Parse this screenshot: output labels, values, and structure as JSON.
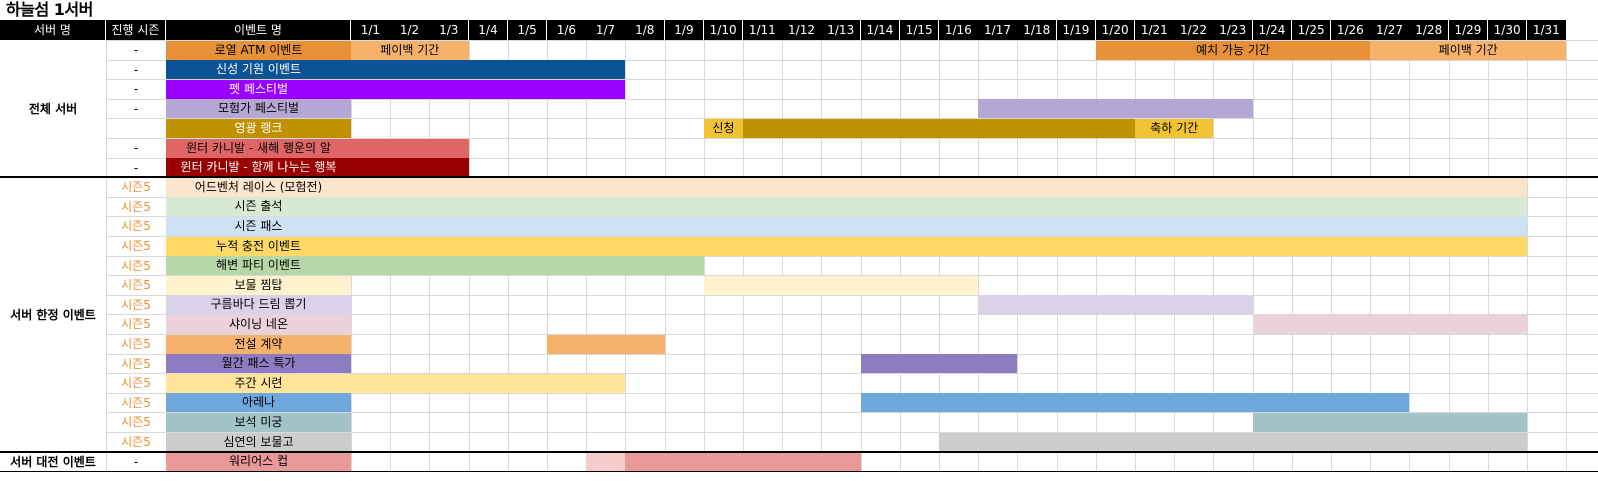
{
  "title": "하늘섬 1서버",
  "headers": {
    "server": "서버 명",
    "season": "진행 시즌",
    "event": "이벤트 명",
    "days": [
      "1/1",
      "1/2",
      "1/3",
      "1/4",
      "1/5",
      "1/6",
      "1/7",
      "1/8",
      "1/9",
      "1/10",
      "1/11",
      "1/12",
      "1/13",
      "1/14",
      "1/15",
      "1/16",
      "1/17",
      "1/18",
      "1/19",
      "1/20",
      "1/21",
      "1/22",
      "1/23",
      "1/24",
      "1/25",
      "1/26",
      "1/27",
      "1/28",
      "1/29",
      "1/30",
      "1/31"
    ]
  },
  "groups": [
    {
      "label": "전체 서버",
      "first_row": 0,
      "last_row": 6
    },
    {
      "label": "서버 한정 이벤트",
      "first_row": 7,
      "last_row": 20
    },
    {
      "label": "서버 대전 이벤트",
      "first_row": 21,
      "last_row": 21
    }
  ],
  "rows": [
    {
      "season": "-",
      "name": "로열 ATM 이벤트",
      "color": "#e69138",
      "text_color": "#000000",
      "bars": [
        {
          "start": 1,
          "end": 3,
          "color": "#f6b26b",
          "label": "페이백 기간"
        },
        {
          "start": 20,
          "end": 26,
          "color": "#e69138",
          "label": "예치 가능 기간"
        },
        {
          "start": 27,
          "end": 31,
          "color": "#f6b26b",
          "label": "페이백 기간"
        }
      ]
    },
    {
      "season": "-",
      "name": "신성 기원 이벤트",
      "color": "#0b5394",
      "text_color": "#ffffff",
      "bars": [
        {
          "start": 1,
          "end": 7,
          "color": "#0b5394",
          "label": ""
        }
      ]
    },
    {
      "season": "-",
      "name": "펫 페스티벌",
      "color": "#9900ff",
      "text_color": "#ffffff",
      "bars": [
        {
          "start": 1,
          "end": 7,
          "color": "#9900ff",
          "label": ""
        }
      ]
    },
    {
      "season": "-",
      "name": "모험가 페스티벌",
      "color": "#b4a7d6",
      "text_color": "#000000",
      "bars": [
        {
          "start": 17,
          "end": 23,
          "color": "#b4a7d6",
          "label": ""
        }
      ]
    },
    {
      "season": "",
      "name": "영광 랭크",
      "color": "#bf9000",
      "text_color": "#ffffff",
      "bars": [
        {
          "start": 10,
          "end": 10,
          "color": "#f1c232",
          "label": "신청"
        },
        {
          "start": 11,
          "end": 20,
          "color": "#bf9000",
          "label": ""
        },
        {
          "start": 21,
          "end": 22,
          "color": "#f1c232",
          "label": "축하 기간"
        }
      ]
    },
    {
      "season": "-",
      "name": "윈터 카니발 - 새해 행운의 알",
      "color": "#e06666",
      "text_color": "#000000",
      "bars": [
        {
          "start": 1,
          "end": 3,
          "color": "#e06666",
          "label": ""
        }
      ]
    },
    {
      "season": "-",
      "name": "윈터 카니발 - 함께 나누는 행복",
      "color": "#990000",
      "text_color": "#ffffff",
      "bars": [
        {
          "start": 1,
          "end": 3,
          "color": "#990000",
          "label": ""
        }
      ]
    },
    {
      "season": "시즌5",
      "name": "어드벤처 레이스 (모험전)",
      "color": "#fce5cd",
      "text_color": "#000000",
      "bars": [
        {
          "start": 1,
          "end": 30,
          "color": "#fce5cd",
          "label": ""
        }
      ]
    },
    {
      "season": "시즌5",
      "name": "시즌 출석",
      "color": "#d9ead3",
      "text_color": "#000000",
      "bars": [
        {
          "start": 1,
          "end": 30,
          "color": "#d9ead3",
          "label": ""
        }
      ]
    },
    {
      "season": "시즌5",
      "name": "시즌 패스",
      "color": "#cfe2f3",
      "text_color": "#000000",
      "bars": [
        {
          "start": 1,
          "end": 30,
          "color": "#cfe2f3",
          "label": ""
        }
      ]
    },
    {
      "season": "시즌5",
      "name": "누적 충전 이벤트",
      "color": "#ffd966",
      "text_color": "#000000",
      "bars": [
        {
          "start": 1,
          "end": 30,
          "color": "#ffd966",
          "label": ""
        }
      ]
    },
    {
      "season": "시즌5",
      "name": "해변 파티 이벤트",
      "color": "#b6d7a8",
      "text_color": "#000000",
      "bars": [
        {
          "start": 1,
          "end": 9,
          "color": "#b6d7a8",
          "label": ""
        }
      ]
    },
    {
      "season": "시즌5",
      "name": "보물 찜탑",
      "color": "#fff2cc",
      "text_color": "#000000",
      "bars": [
        {
          "start": 10,
          "end": 16,
          "color": "#fff2cc",
          "label": ""
        }
      ]
    },
    {
      "season": "시즌5",
      "name": "구름바다 드림 뽑기",
      "color": "#d9d2e9",
      "text_color": "#000000",
      "bars": [
        {
          "start": 17,
          "end": 23,
          "color": "#d9d2e9",
          "label": ""
        }
      ]
    },
    {
      "season": "시즌5",
      "name": "샤이닝 네온",
      "color": "#ead1dc",
      "text_color": "#000000",
      "bars": [
        {
          "start": 24,
          "end": 30,
          "color": "#ead1dc",
          "label": ""
        }
      ]
    },
    {
      "season": "시즌5",
      "name": "전설 계약",
      "color": "#f6b26b",
      "text_color": "#000000",
      "bars": [
        {
          "start": 6,
          "end": 8,
          "color": "#f6b26b",
          "label": ""
        }
      ]
    },
    {
      "season": "시즌5",
      "name": "월간 패스 특가",
      "color": "#8e7cc3",
      "text_color": "#000000",
      "bars": [
        {
          "start": 14,
          "end": 17,
          "color": "#8e7cc3",
          "label": ""
        }
      ]
    },
    {
      "season": "시즌5",
      "name": "주간 시련",
      "color": "#ffe599",
      "text_color": "#000000",
      "bars": [
        {
          "start": 1,
          "end": 7,
          "color": "#ffe599",
          "label": ""
        }
      ]
    },
    {
      "season": "시즌5",
      "name": "아레나",
      "color": "#6fa8dc",
      "text_color": "#000000",
      "bars": [
        {
          "start": 14,
          "end": 27,
          "color": "#6fa8dc",
          "label": ""
        }
      ]
    },
    {
      "season": "시즌5",
      "name": "보석 미궁",
      "color": "#a2c4c9",
      "text_color": "#000000",
      "bars": [
        {
          "start": 24,
          "end": 30,
          "color": "#a2c4c9",
          "label": ""
        }
      ]
    },
    {
      "season": "시즌5",
      "name": "심연의 보물고",
      "color": "#cccccc",
      "text_color": "#000000",
      "bars": [
        {
          "start": 16,
          "end": 30,
          "color": "#cccccc",
          "label": ""
        }
      ]
    },
    {
      "season": "-",
      "name": "워리어스 컵",
      "color": "#ea9999",
      "text_color": "#000000",
      "bars": [
        {
          "start": 7,
          "end": 7,
          "color": "#f4cccc",
          "label": ""
        },
        {
          "start": 8,
          "end": 13,
          "color": "#ea9999",
          "label": ""
        }
      ]
    }
  ],
  "colors": {
    "season_text": "#e69138",
    "header_bg": "#000000",
    "header_text": "#ffffff",
    "grid": "#d9d9d9"
  }
}
